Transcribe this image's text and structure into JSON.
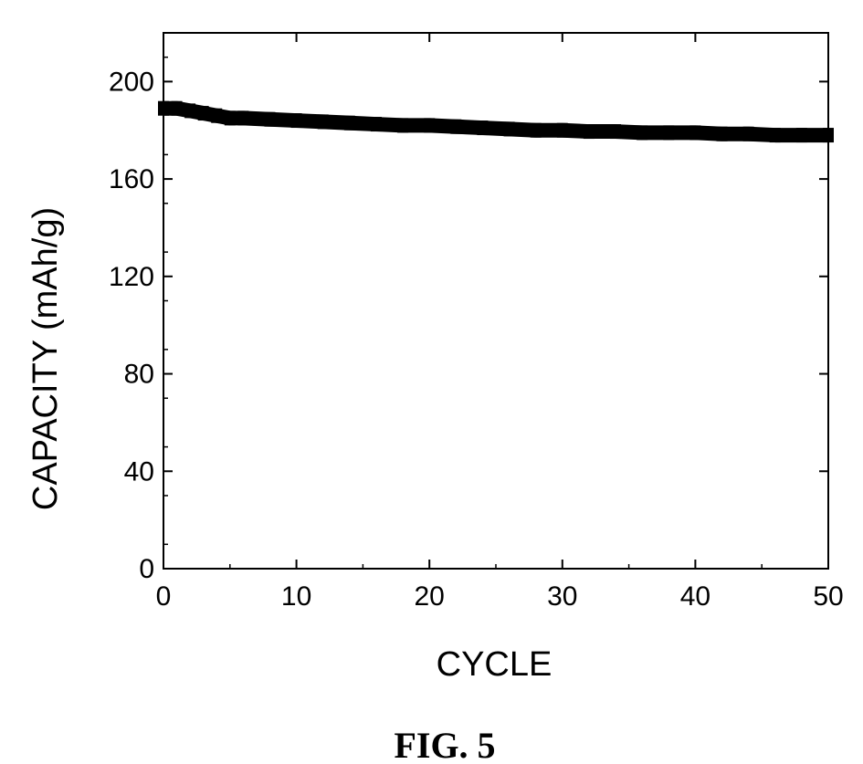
{
  "chart_data": {
    "type": "line",
    "xlabel": "CYCLE",
    "ylabel": "CAPACITY (mAh/g)",
    "xlim": [
      0,
      50
    ],
    "ylim": [
      0,
      220
    ],
    "xticks": [
      0,
      10,
      20,
      30,
      40,
      50
    ],
    "yticks": [
      0,
      40,
      80,
      120,
      160,
      200
    ],
    "grid": false,
    "series": [
      {
        "x": [
          0,
          1,
          2,
          3,
          4,
          5,
          6,
          8,
          10,
          12,
          14,
          16,
          18,
          20,
          22,
          24,
          26,
          28,
          30,
          32,
          34,
          36,
          38,
          40,
          42,
          44,
          46,
          48,
          50
        ],
        "y": [
          189,
          189,
          188,
          187,
          186,
          185,
          185,
          184.5,
          184,
          183.5,
          183,
          182.5,
          182,
          182,
          181.5,
          181,
          180.5,
          180,
          180,
          179.5,
          179.5,
          179,
          179,
          179,
          178.5,
          178.5,
          178,
          178,
          178
        ]
      }
    ],
    "color": "#000000"
  },
  "figure": {
    "caption": "FIG. 5"
  }
}
